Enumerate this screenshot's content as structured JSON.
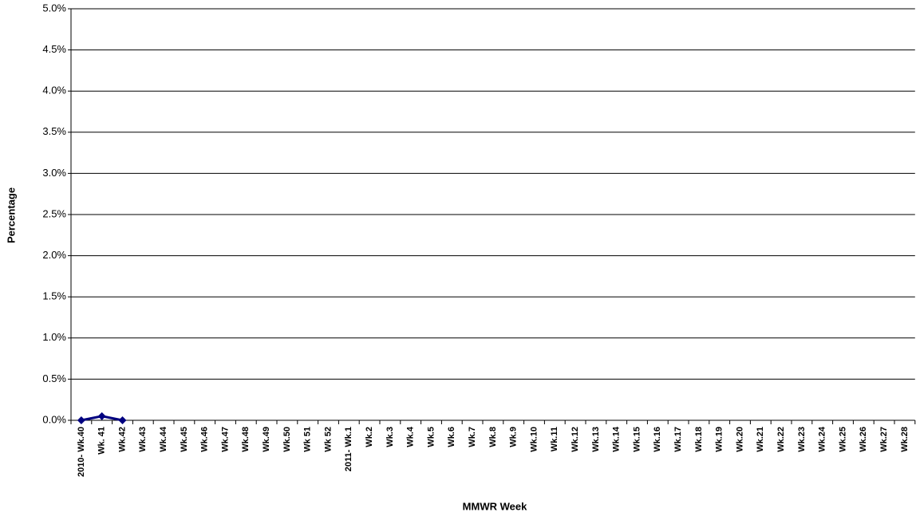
{
  "chart_data": {
    "type": "line",
    "x_label": "MMWR Week",
    "y_label": "Percentage",
    "categories": [
      "2010- Wk.40",
      "Wk. 41",
      "Wk.42",
      "Wk.43",
      "Wk.44",
      "Wk.45",
      "Wk.46",
      "Wk.47",
      "Wk.48",
      "Wk.49",
      "Wk.50",
      "Wk 51",
      "Wk 52",
      "2011- Wk.1",
      "Wk.2",
      "Wk.3",
      "Wk.4",
      "Wk.5",
      "Wk.6",
      "Wk.7",
      "Wk.8",
      "Wk.9",
      "Wk.10",
      "Wk.11",
      "Wk.12",
      "Wk.13",
      "Wk.14",
      "Wk.15",
      "Wk.16",
      "Wk.17",
      "Wk.18",
      "Wk.19",
      "Wk.20",
      "Wk.21",
      "Wk.22",
      "Wk.23",
      "Wk.24",
      "Wk.25",
      "Wk.26",
      "Wk.27",
      "Wk.28"
    ],
    "values": [
      0,
      0.05,
      0,
      null,
      null,
      null,
      null,
      null,
      null,
      null,
      null,
      null,
      null,
      null,
      null,
      null,
      null,
      null,
      null,
      null,
      null,
      null,
      null,
      null,
      null,
      null,
      null,
      null,
      null,
      null,
      null,
      null,
      null,
      null,
      null,
      null,
      null,
      null,
      null,
      null,
      null
    ],
    "color": "#000080",
    "ylim": [
      0,
      5
    ],
    "yticks": [
      {
        "value": 0,
        "label": "0.0%"
      },
      {
        "value": 0.5,
        "label": "0.5%"
      },
      {
        "value": 1,
        "label": "1.0%"
      },
      {
        "value": 1.5,
        "label": "1.5%"
      },
      {
        "value": 2,
        "label": "2.0%"
      },
      {
        "value": 2.5,
        "label": "2.5%"
      },
      {
        "value": 3,
        "label": "3.0%"
      },
      {
        "value": 3.5,
        "label": "3.5%"
      },
      {
        "value": 4,
        "label": "4.0%"
      },
      {
        "value": 4.5,
        "label": "4.5%"
      },
      {
        "value": 5,
        "label": "5.0%"
      }
    ],
    "grid": true
  }
}
